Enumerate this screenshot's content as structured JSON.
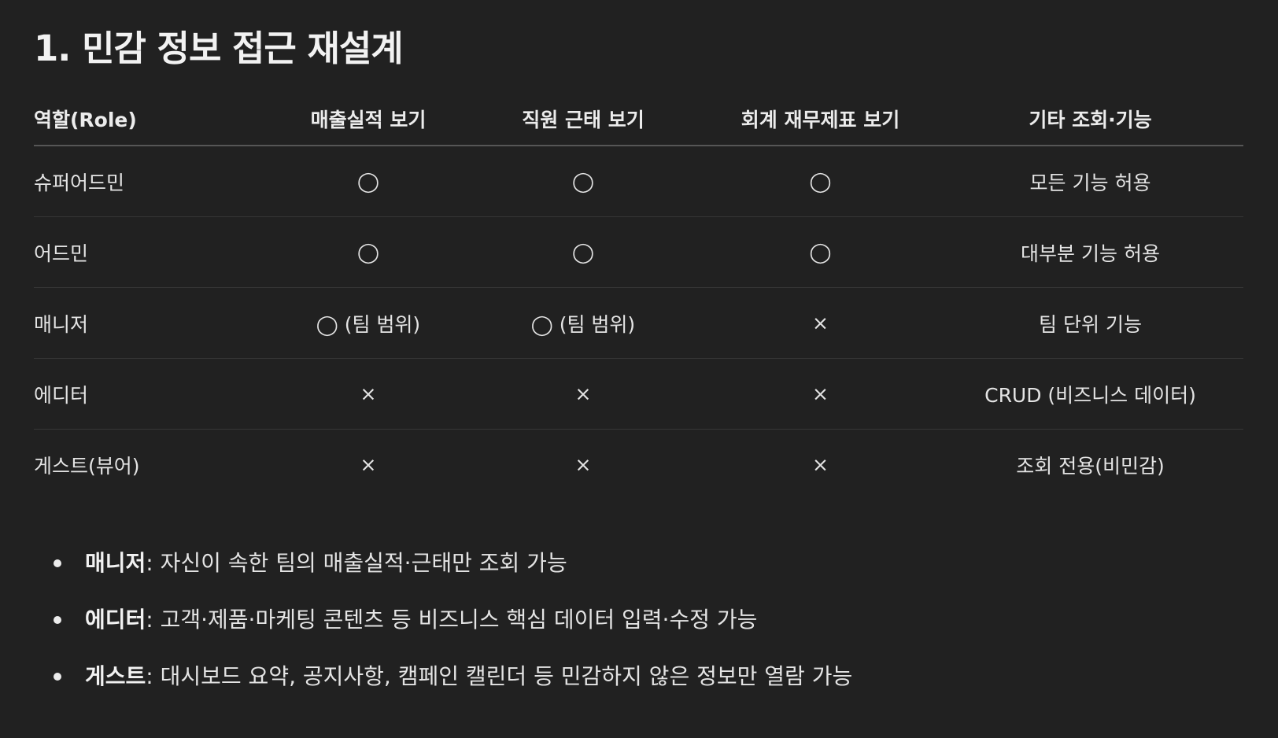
{
  "heading": "1. 민감 정보 접근 재설계",
  "table": {
    "headers": [
      "역할(Role)",
      "매출실적 보기",
      "직원 근태 보기",
      "회계 재무제표 보기",
      "기타 조회·기능"
    ],
    "rows": [
      [
        "슈퍼어드민",
        "◯",
        "◯",
        "◯",
        "모든 기능 허용"
      ],
      [
        "어드민",
        "◯",
        "◯",
        "◯",
        "대부분 기능 허용"
      ],
      [
        "매니저",
        "◯ (팀 범위)",
        "◯ (팀 범위)",
        "×",
        "팀 단위 기능"
      ],
      [
        "에디터",
        "×",
        "×",
        "×",
        "CRUD (비즈니스 데이터)"
      ],
      [
        "게스트(뷰어)",
        "×",
        "×",
        "×",
        "조회 전용(비민감)"
      ]
    ]
  },
  "notes": [
    {
      "term": "매니저",
      "text": ": 자신이 속한 팀의 매출실적·근태만 조회 가능"
    },
    {
      "term": "에디터",
      "text": ": 고객·제품·마케팅 콘텐츠 등 비즈니스 핵심 데이터 입력·수정 가능"
    },
    {
      "term": "게스트",
      "text": ": 대시보드 요약, 공지사항, 캠페인 캘린더 등 민감하지 않은 정보만 열람 가능"
    }
  ]
}
